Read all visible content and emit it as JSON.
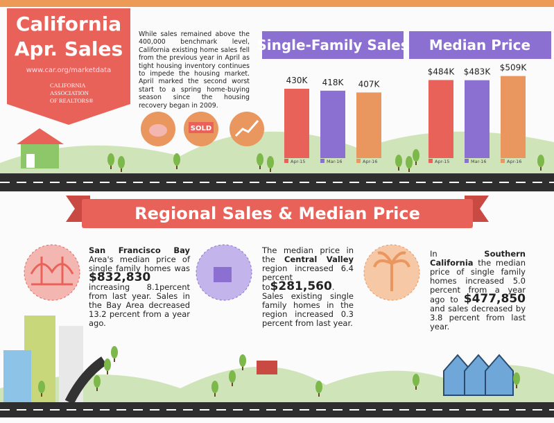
{
  "header": {
    "title_line1": "California",
    "title_line2": "Apr. Sales",
    "url": "www.car.org/marketdata",
    "org_line1": "CALIFORNIA",
    "org_line2": "ASSOCIATION",
    "org_line3": "OF REALTORS®",
    "intro": "While sales remained above the 400,000 benchmark level, California existing home sales fell from the previous year in April as tight housing inventory continues to impede the housing market. April marked the second worst start to a spring home-buying season since the housing recovery began in 2009."
  },
  "icons": {
    "sold": "SOLD"
  },
  "sales_chart": {
    "title": "Single-Family Sales",
    "categories": [
      "Apr-15",
      "Mar-16",
      "Apr-16"
    ],
    "values": [
      430000,
      418000,
      407000
    ],
    "value_labels": [
      "430K",
      "418K",
      "407K"
    ],
    "colors": [
      "#e8625a",
      "#8b6fd1",
      "#ea965f"
    ]
  },
  "price_chart": {
    "title": "Median Price",
    "categories": [
      "Apr-15",
      "Mar-16",
      "Apr-16"
    ],
    "values": [
      484000,
      483000,
      509000
    ],
    "value_labels": [
      "$484K",
      "$483K",
      "$509K"
    ],
    "colors": [
      "#e8625a",
      "#8b6fd1",
      "#ea965f"
    ]
  },
  "regional": {
    "title": "Regional Sales & Median Price",
    "regions": [
      {
        "parts": [
          "San Francisco Bay",
          " Area's median price of single family homes was ",
          "$832,830",
          " increasing 8.1percent from last year. Sales in the Bay Area decreased 13.2 percent from a year ago."
        ]
      },
      {
        "parts": [
          "The median price in the ",
          "Central Valley",
          " region increased 6.4 percent to",
          "$281,560",
          ". Sales existing single family homes in the region increased 0.3 percent from last year."
        ]
      },
      {
        "parts": [
          "In ",
          "Southern California",
          " the median price of single family homes increased 5.0 percent from a year ago to ",
          "$477,850",
          " and sales decreased by 3.8 percent from last year."
        ]
      }
    ]
  }
}
